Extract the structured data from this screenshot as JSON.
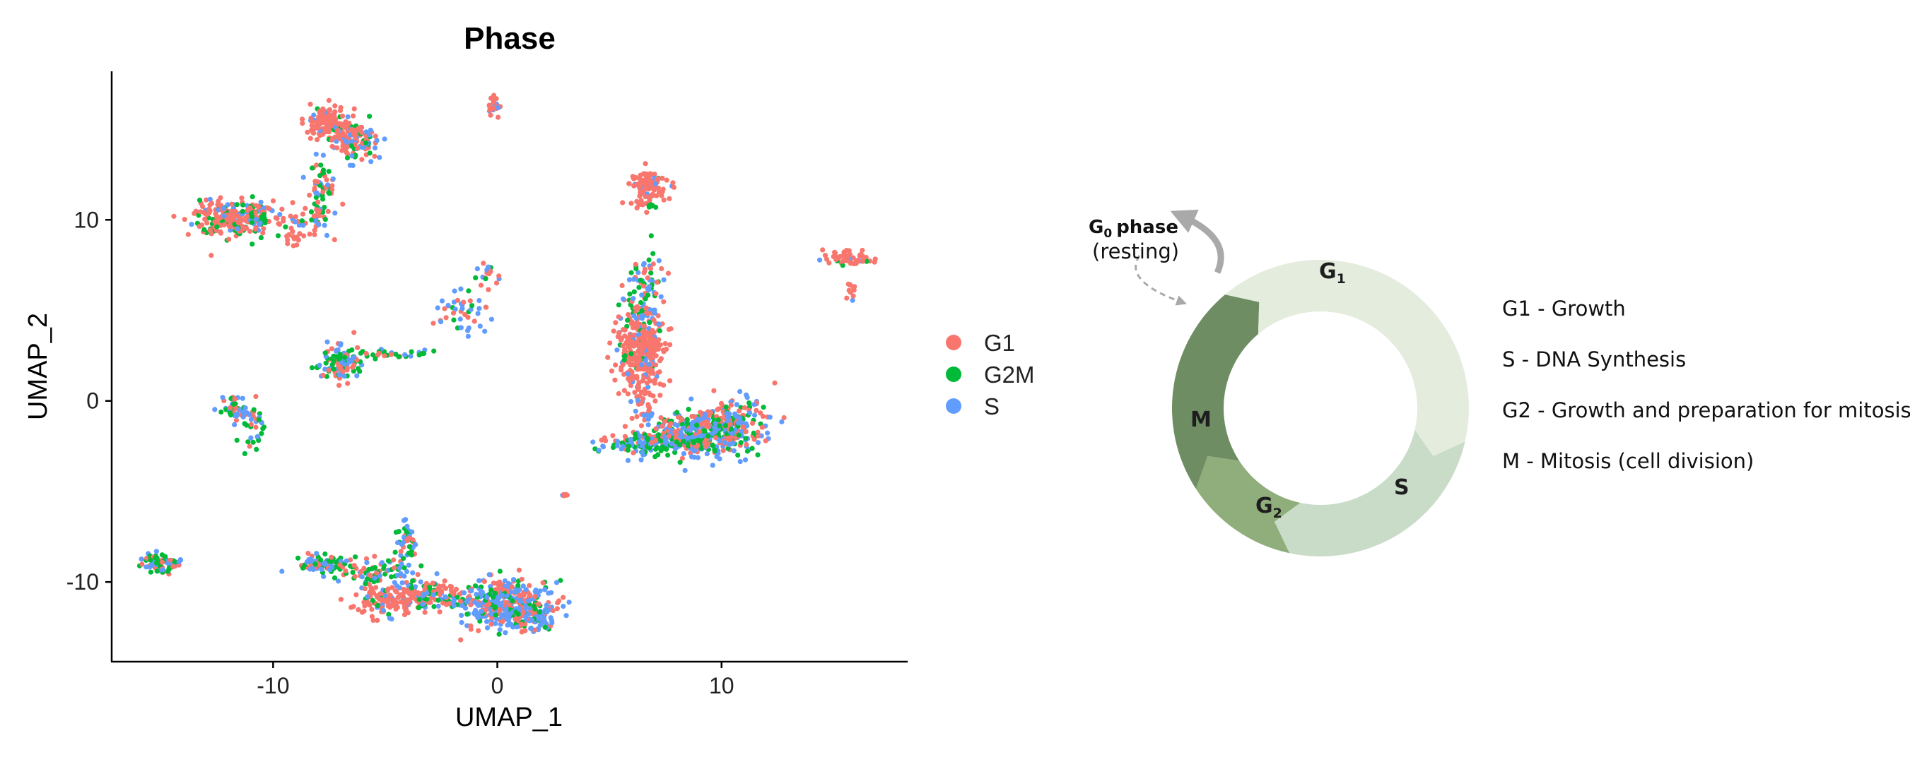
{
  "chart_data": [
    {
      "type": "scatter",
      "title": "Phase",
      "xlabel": "UMAP_1",
      "ylabel": "UMAP_2",
      "xlim": [
        -17.2,
        18.3
      ],
      "ylim": [
        -14.4,
        18.2
      ],
      "xticks": [
        -10,
        0,
        10
      ],
      "yticks": [
        -10,
        0,
        10
      ],
      "grid": false,
      "legend_position": "right",
      "series": [
        {
          "name": "G1",
          "color": "#F8766D"
        },
        {
          "name": "G2M",
          "color": "#00BA38"
        },
        {
          "name": "S",
          "color": "#619CFF"
        }
      ],
      "clusters": [
        {
          "x": -7.5,
          "y": 15.2,
          "sx": 0.55,
          "sy": 0.55,
          "n": 140,
          "mix": [
            0.8,
            0.05,
            0.15
          ]
        },
        {
          "x": -6.3,
          "y": 14.3,
          "sx": 0.5,
          "sy": 0.5,
          "n": 110,
          "mix": [
            0.4,
            0.2,
            0.4
          ]
        },
        {
          "x": -7.8,
          "y": 11.5,
          "sx": 0.35,
          "sy": 1.1,
          "n": 80,
          "mix": [
            0.4,
            0.3,
            0.3
          ]
        },
        {
          "x": -11.8,
          "y": 10.1,
          "sx": 0.8,
          "sy": 0.55,
          "n": 240,
          "mix": [
            0.6,
            0.25,
            0.15
          ]
        },
        {
          "x": -9.4,
          "y": 10.1,
          "sx": 0.8,
          "sy": 0.3,
          "n": 40,
          "mix": [
            0.6,
            0.1,
            0.3
          ]
        },
        {
          "x": -9.1,
          "y": 9.0,
          "sx": 0.2,
          "sy": 0.2,
          "n": 14,
          "mix": [
            1,
            0,
            0
          ]
        },
        {
          "x": -0.1,
          "y": 16.3,
          "sx": 0.15,
          "sy": 0.3,
          "n": 22,
          "mix": [
            0.6,
            0,
            0.4
          ]
        },
        {
          "x": -7.0,
          "y": 2.1,
          "sx": 0.45,
          "sy": 0.45,
          "n": 110,
          "mix": [
            0.3,
            0.3,
            0.4
          ]
        },
        {
          "x": -4.8,
          "y": 2.6,
          "sx": 0.9,
          "sy": 0.15,
          "n": 30,
          "mix": [
            0.1,
            0.6,
            0.3
          ]
        },
        {
          "x": -11.6,
          "y": -0.5,
          "sx": 0.35,
          "sy": 0.35,
          "n": 55,
          "mix": [
            0.3,
            0.3,
            0.4
          ]
        },
        {
          "x": -10.7,
          "y": -1.7,
          "sx": 0.4,
          "sy": 0.55,
          "n": 25,
          "mix": [
            0.1,
            0.5,
            0.4
          ]
        },
        {
          "x": -1.6,
          "y": 4.8,
          "sx": 0.6,
          "sy": 0.7,
          "n": 45,
          "mix": [
            0.4,
            0.1,
            0.5
          ]
        },
        {
          "x": -0.4,
          "y": 7.0,
          "sx": 0.3,
          "sy": 0.5,
          "n": 18,
          "mix": [
            0.4,
            0.2,
            0.4
          ]
        },
        {
          "x": 6.7,
          "y": 11.8,
          "sx": 0.45,
          "sy": 0.5,
          "n": 110,
          "mix": [
            0.9,
            0.05,
            0.05
          ]
        },
        {
          "x": 6.9,
          "y": 10.8,
          "sx": 0.15,
          "sy": 0.15,
          "n": 8,
          "mix": [
            0,
            1,
            0
          ]
        },
        {
          "x": 6.6,
          "y": 5.8,
          "sx": 0.4,
          "sy": 1.0,
          "n": 90,
          "mix": [
            0.3,
            0.35,
            0.35
          ]
        },
        {
          "x": 6.4,
          "y": 2.9,
          "sx": 0.55,
          "sy": 1.1,
          "n": 320,
          "mix": [
            0.85,
            0.05,
            0.1
          ]
        },
        {
          "x": 6.6,
          "y": 0.0,
          "sx": 0.3,
          "sy": 0.6,
          "n": 40,
          "mix": [
            0.8,
            0,
            0.2
          ]
        },
        {
          "x": 9.0,
          "y": -1.9,
          "sx": 1.3,
          "sy": 0.6,
          "n": 380,
          "mix": [
            0.3,
            0.35,
            0.35
          ]
        },
        {
          "x": 10.2,
          "y": -0.9,
          "sx": 0.9,
          "sy": 0.6,
          "n": 130,
          "mix": [
            0.5,
            0.2,
            0.3
          ]
        },
        {
          "x": 6.7,
          "y": -2.3,
          "sx": 1.0,
          "sy": 0.3,
          "n": 120,
          "mix": [
            0.25,
            0.3,
            0.45
          ]
        },
        {
          "x": 15.6,
          "y": 7.9,
          "sx": 0.6,
          "sy": 0.2,
          "n": 60,
          "mix": [
            0.8,
            0.1,
            0.1
          ]
        },
        {
          "x": 15.8,
          "y": 6.1,
          "sx": 0.1,
          "sy": 0.3,
          "n": 12,
          "mix": [
            0.7,
            0,
            0.3
          ]
        },
        {
          "x": 3.0,
          "y": -5.2,
          "sx": 0.1,
          "sy": 0.08,
          "n": 8,
          "mix": [
            0.6,
            0.2,
            0.2
          ]
        },
        {
          "x": -14.9,
          "y": -9.0,
          "sx": 0.45,
          "sy": 0.3,
          "n": 70,
          "mix": [
            0.3,
            0.3,
            0.4
          ]
        },
        {
          "x": -7.6,
          "y": -9.0,
          "sx": 0.6,
          "sy": 0.25,
          "n": 80,
          "mix": [
            0.3,
            0.4,
            0.3
          ]
        },
        {
          "x": -5.3,
          "y": -9.6,
          "sx": 0.9,
          "sy": 0.35,
          "n": 90,
          "mix": [
            0.3,
            0.4,
            0.3
          ]
        },
        {
          "x": -4.1,
          "y": -7.8,
          "sx": 0.25,
          "sy": 0.6,
          "n": 40,
          "mix": [
            0.3,
            0.4,
            0.3
          ]
        },
        {
          "x": -4.7,
          "y": -11.0,
          "sx": 0.8,
          "sy": 0.4,
          "n": 140,
          "mix": [
            0.85,
            0.05,
            0.1
          ]
        },
        {
          "x": -2.8,
          "y": -10.7,
          "sx": 0.7,
          "sy": 0.35,
          "n": 100,
          "mix": [
            0.4,
            0.35,
            0.25
          ]
        },
        {
          "x": 0.4,
          "y": -11.2,
          "sx": 1.0,
          "sy": 0.7,
          "n": 380,
          "mix": [
            0.35,
            0.15,
            0.5
          ]
        },
        {
          "x": 1.6,
          "y": -12.0,
          "sx": 0.5,
          "sy": 0.35,
          "n": 60,
          "mix": [
            0.2,
            0.2,
            0.6
          ]
        }
      ]
    },
    {
      "type": "diagram",
      "segments": [
        {
          "label": "G",
          "sub": "1",
          "color": "#E3ECDD"
        },
        {
          "label": "S",
          "sub": "",
          "color": "#C9DCC8"
        },
        {
          "label": "G",
          "sub": "2",
          "color": "#8FAE7C"
        },
        {
          "label": "M",
          "sub": "",
          "color": "#6E8D63"
        }
      ],
      "g0_label": "G",
      "g0_sub": "0",
      "g0_word": "phase",
      "g0_resting": "(resting)",
      "legend": [
        "G1 - Growth",
        "S - DNA Synthesis",
        "G2 - Growth and preparation for mitosis",
        "M - Mitosis (cell division)"
      ]
    }
  ]
}
